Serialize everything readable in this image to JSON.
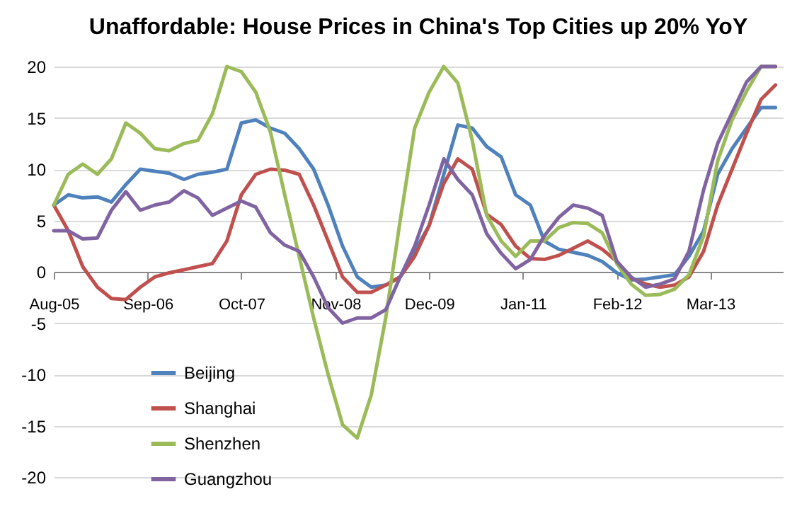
{
  "chart_data": {
    "type": "line",
    "title": "Unaffordable: House Prices in China's Top Cities up 20% YoY",
    "x": [
      "2005-08",
      "2005-10",
      "2005-12",
      "2006-02",
      "2006-04",
      "2006-06",
      "2006-08",
      "2006-10",
      "2006-12",
      "2007-02",
      "2007-04",
      "2007-06",
      "2007-08",
      "2007-10",
      "2007-12",
      "2008-02",
      "2008-04",
      "2008-06",
      "2008-08",
      "2008-10",
      "2008-12",
      "2009-02",
      "2009-04",
      "2009-06",
      "2009-08",
      "2009-10",
      "2009-12",
      "2010-02",
      "2010-04",
      "2010-06",
      "2010-08",
      "2010-10",
      "2010-12",
      "2011-02",
      "2011-04",
      "2011-06",
      "2011-08",
      "2011-10",
      "2011-12",
      "2012-02",
      "2012-04",
      "2012-06",
      "2012-08",
      "2012-10",
      "2012-12",
      "2013-02",
      "2013-04",
      "2013-06",
      "2013-08",
      "2013-10",
      "2013-12"
    ],
    "series": [
      {
        "name": "Beijing",
        "color": "#4f81bd",
        "values": [
          6.5,
          7.5,
          7.2,
          7.3,
          6.8,
          8.5,
          10,
          9.8,
          9.6,
          9,
          9.5,
          9.7,
          10,
          14.5,
          14.8,
          14,
          13.5,
          12,
          10,
          6.5,
          2.5,
          -0.5,
          -1.5,
          -1.3,
          -0.5,
          2,
          4.5,
          9.5,
          14.3,
          14,
          12.2,
          11.2,
          7.5,
          6.5,
          3,
          2.2,
          1.9,
          1.6,
          1,
          -0.1,
          -0.8,
          -0.7,
          -0.5,
          -0.3,
          1.5,
          4,
          9.5,
          12,
          14,
          16,
          16
        ]
      },
      {
        "name": "Shanghai",
        "color": "#c0504d",
        "values": [
          6.5,
          4,
          0.5,
          -1.5,
          -2.6,
          -2.7,
          -1.5,
          -0.5,
          -0.1,
          0.2,
          0.5,
          0.8,
          3,
          7.5,
          9.5,
          10,
          9.9,
          9.5,
          6.5,
          3,
          -0.5,
          -2,
          -2,
          -1.3,
          -0.5,
          1.5,
          4.5,
          8.6,
          11,
          10,
          5.6,
          4.6,
          2.5,
          1.3,
          1.2,
          1.6,
          2.3,
          3,
          2.2,
          1,
          -0.6,
          -1.2,
          -1.5,
          -1.3,
          -0.5,
          2,
          6.5,
          10,
          13.5,
          16.8,
          18.2
        ]
      },
      {
        "name": "Shenzhen",
        "color": "#9bbb59",
        "values": [
          6.5,
          9.5,
          10.5,
          9.5,
          11,
          14.5,
          13.5,
          12,
          11.8,
          12.5,
          12.8,
          15.4,
          20,
          19.5,
          17.5,
          13.6,
          7.5,
          1.5,
          -4.5,
          -10,
          -14.9,
          -16.2,
          -12,
          -4.5,
          5,
          14,
          17.5,
          20,
          18.4,
          12.8,
          5.5,
          3,
          1.5,
          3,
          3,
          4.3,
          4.8,
          4.7,
          3.8,
          0.8,
          -1.2,
          -2.3,
          -2.2,
          -1.7,
          -0.3,
          3.5,
          10.8,
          14.8,
          17.6,
          20,
          20
        ]
      },
      {
        "name": "Guangzhou",
        "color": "#8064a2",
        "values": [
          4,
          4,
          3.2,
          3.3,
          6,
          7.8,
          6,
          6.5,
          6.8,
          7.9,
          7.2,
          5.5,
          6.2,
          6.9,
          6.3,
          3.8,
          2.6,
          2,
          -0.5,
          -3.5,
          -5,
          -4.5,
          -4.5,
          -3.7,
          -0.5,
          2.5,
          6.5,
          11,
          9,
          7.5,
          3.7,
          1.8,
          0.3,
          1.2,
          3.5,
          5.3,
          6.5,
          6.2,
          5.5,
          1,
          -0.5,
          -1.5,
          -1.2,
          -0.7,
          2,
          8,
          12.5,
          15.5,
          18.5,
          20,
          20
        ]
      }
    ],
    "xlim": [
      "2005-08",
      "2014-01"
    ],
    "xticks": [
      {
        "value": "2005-08",
        "label": "Aug-05"
      },
      {
        "value": "2006-09",
        "label": "Sep-06"
      },
      {
        "value": "2007-10",
        "label": "Oct-07"
      },
      {
        "value": "2008-11",
        "label": "Nov-08"
      },
      {
        "value": "2009-12",
        "label": "Dec-09"
      },
      {
        "value": "2011-01",
        "label": "Jan-11"
      },
      {
        "value": "2012-02",
        "label": "Feb-12"
      },
      {
        "value": "2013-03",
        "label": "Mar-13"
      }
    ],
    "ylim": [
      -20,
      20
    ],
    "yticks": [
      -20,
      -15,
      -10,
      -5,
      0,
      5,
      10,
      15,
      20
    ],
    "grid": "y",
    "legend": "bottom left",
    "line_style": "solid"
  }
}
